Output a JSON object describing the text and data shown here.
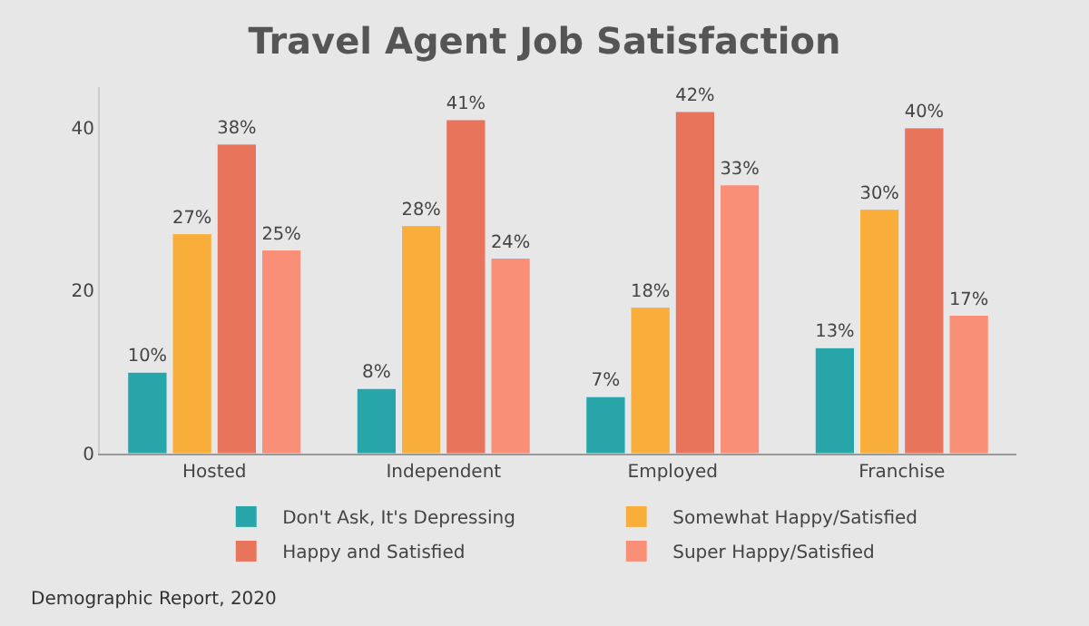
{
  "chart_data": {
    "type": "bar",
    "title": "Travel Agent Job Satisfaction",
    "categories": [
      "Hosted",
      "Independent",
      "Employed",
      "Franchise"
    ],
    "series": [
      {
        "name": "Don't Ask, It's Depressing",
        "color": "#27a5a8",
        "values": [
          10,
          8,
          7,
          13
        ],
        "value_labels": [
          "10%",
          "8%",
          "7%",
          "13%"
        ]
      },
      {
        "name": "Somewhat Happy/Satisfied",
        "color": "#f9ae3b",
        "values": [
          27,
          28,
          18,
          30
        ],
        "value_labels": [
          "27%",
          "28%",
          "18%",
          "30%"
        ]
      },
      {
        "name": "Happy and Satisfied",
        "color": "#e8745c",
        "values": [
          38,
          41,
          42,
          40
        ],
        "value_labels": [
          "38%",
          "41%",
          "42%",
          "40%"
        ]
      },
      {
        "name": "Super Happy/Satisfied",
        "color": "#f98f76",
        "values": [
          25,
          24,
          33,
          17
        ],
        "value_labels": [
          "25%",
          "24%",
          "33%",
          "17%"
        ]
      }
    ],
    "ylim": [
      0,
      45
    ],
    "yticks": [
      0,
      20,
      40
    ],
    "grid": false,
    "legend": "bottom",
    "annotations": [
      "Demographic Report, 2020"
    ]
  }
}
